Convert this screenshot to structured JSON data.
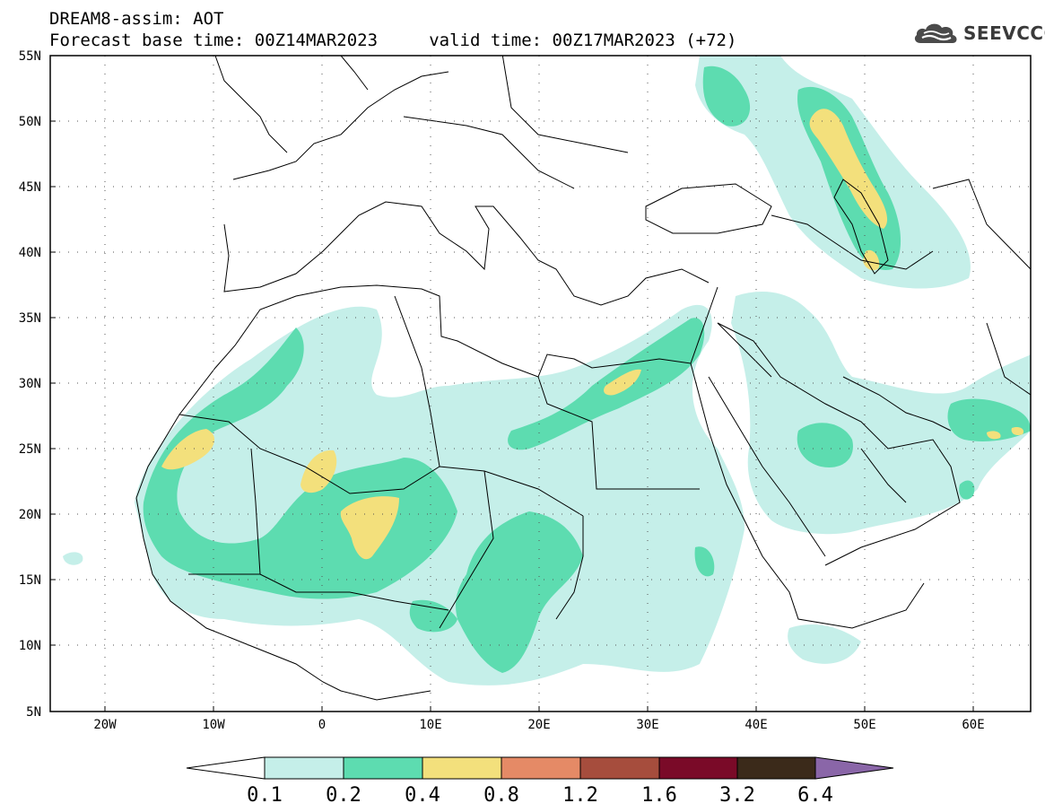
{
  "header": {
    "title_line1": "DREAM8-assim: AOT",
    "title_line2": "Forecast base time: 00Z14MAR2023     valid time: 00Z17MAR2023 (+72)"
  },
  "logo": {
    "text": "SEEVCCC",
    "icon": "cloud-icon"
  },
  "map": {
    "projection": "lat-lon",
    "lon_range": [
      -25,
      65
    ],
    "lat_range": [
      5,
      55
    ],
    "lat_labels": [
      "55N",
      "50N",
      "45N",
      "40N",
      "35N",
      "30N",
      "25N",
      "20N",
      "15N",
      "10N",
      "5N"
    ],
    "lon_labels": [
      "20W",
      "10W",
      "0",
      "10E",
      "20E",
      "30E",
      "40E",
      "50E",
      "60E"
    ],
    "grid": "dotted"
  },
  "colorbar": {
    "labels": [
      "0.1",
      "0.2",
      "0.4",
      "0.8",
      "1.2",
      "1.6",
      "3.2",
      "6.4"
    ],
    "colors": [
      "#ffffff",
      "#c5efe9",
      "#5ddcb0",
      "#f3e07c",
      "#e58a66",
      "#a64d3d",
      "#7a0a28",
      "#3b2a1a",
      "#8a66a8"
    ]
  },
  "colors": {
    "aot_0_1": "#c5efe9",
    "aot_0_2": "#5ddcb0",
    "aot_0_4": "#f3e07c"
  }
}
